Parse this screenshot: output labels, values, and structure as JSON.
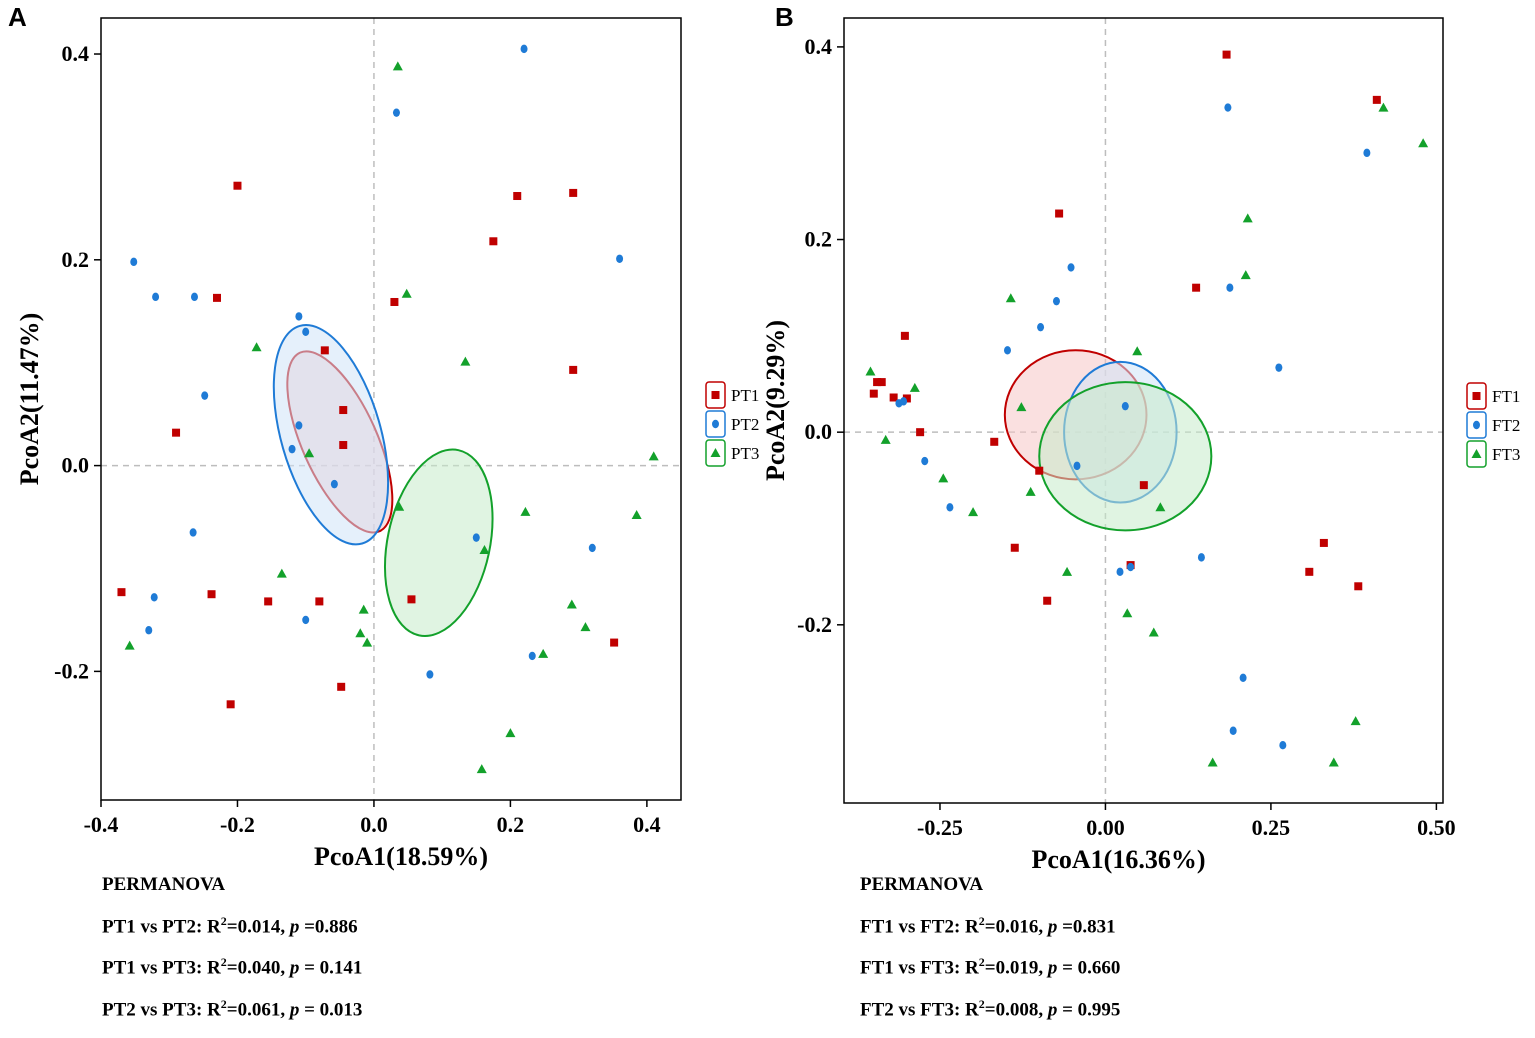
{
  "panels": [
    {
      "letter": "A",
      "chart_data": {
        "type": "scatter",
        "title": "",
        "xlabel": "PcoA1(18.59%)",
        "ylabel": "PcoA2(11.47%)",
        "xlim": [
          -0.4,
          0.45
        ],
        "ylim": [
          -0.325,
          0.435
        ],
        "x_ticks": [
          -0.4,
          -0.2,
          0.0,
          0.2,
          0.4
        ],
        "x_tick_labels": [
          "-0.4",
          "-0.2",
          "0.0",
          "0.2",
          "0.4"
        ],
        "y_ticks": [
          -0.2,
          0.0,
          0.2,
          0.4
        ],
        "y_tick_labels": [
          "-0.2",
          "0.0",
          "0.2",
          "0.4"
        ],
        "reference_lines": {
          "x": 0,
          "y": 0
        },
        "legend_position": "right",
        "series": [
          {
            "name": "PT1",
            "marker": "square",
            "color": "#c00000",
            "fill": "#f5c6c6",
            "ellipse": {
              "cx": -0.05,
              "cy": 0.023,
              "rx": 0.055,
              "ry": 0.095,
              "angle": 24
            },
            "points": [
              [
                -0.2,
                0.272
              ],
              [
                -0.23,
                0.163
              ],
              [
                -0.072,
                0.112
              ],
              [
                -0.045,
                0.054
              ],
              [
                -0.045,
                0.02
              ],
              [
                -0.29,
                0.032
              ],
              [
                0.03,
                0.159
              ],
              [
                0.175,
                0.218
              ],
              [
                0.21,
                0.262
              ],
              [
                0.292,
                0.265
              ],
              [
                0.292,
                0.093
              ],
              [
                -0.37,
                -0.123
              ],
              [
                -0.238,
                -0.125
              ],
              [
                -0.155,
                -0.132
              ],
              [
                -0.08,
                -0.132
              ],
              [
                0.055,
                -0.13
              ],
              [
                0.352,
                -0.172
              ],
              [
                -0.21,
                -0.232
              ],
              [
                -0.048,
                -0.215
              ]
            ]
          },
          {
            "name": "PT2",
            "marker": "circle",
            "color": "#1f7bd6",
            "fill": "#cfe3f7",
            "ellipse": {
              "cx": -0.063,
              "cy": 0.03,
              "rx": 0.073,
              "ry": 0.11,
              "angle": 16
            },
            "points": [
              [
                0.22,
                0.405
              ],
              [
                0.033,
                0.343
              ],
              [
                -0.352,
                0.198
              ],
              [
                -0.32,
                0.164
              ],
              [
                -0.263,
                0.164
              ],
              [
                0.36,
                0.201
              ],
              [
                -0.11,
                0.145
              ],
              [
                -0.1,
                0.13
              ],
              [
                -0.248,
                0.068
              ],
              [
                -0.11,
                0.039
              ],
              [
                -0.12,
                0.016
              ],
              [
                -0.058,
                -0.018
              ],
              [
                -0.265,
                -0.065
              ],
              [
                0.15,
                -0.07
              ],
              [
                0.32,
                -0.08
              ],
              [
                -0.322,
                -0.128
              ],
              [
                -0.33,
                -0.16
              ],
              [
                -0.1,
                -0.15
              ],
              [
                0.232,
                -0.185
              ],
              [
                0.082,
                -0.203
              ]
            ]
          },
          {
            "name": "PT3",
            "marker": "triangle",
            "color": "#13a12b",
            "fill": "#c6ebcb",
            "ellipse": {
              "cx": 0.095,
              "cy": -0.075,
              "rx": 0.075,
              "ry": 0.092,
              "angle": -12
            },
            "points": [
              [
                0.035,
                0.388
              ],
              [
                0.048,
                0.167
              ],
              [
                -0.172,
                0.115
              ],
              [
                0.134,
                0.101
              ],
              [
                0.41,
                0.009
              ],
              [
                -0.095,
                0.012
              ],
              [
                0.037,
                -0.04
              ],
              [
                0.222,
                -0.045
              ],
              [
                0.385,
                -0.048
              ],
              [
                0.162,
                -0.082
              ],
              [
                -0.135,
                -0.105
              ],
              [
                0.29,
                -0.135
              ],
              [
                0.31,
                -0.157
              ],
              [
                -0.015,
                -0.14
              ],
              [
                -0.02,
                -0.163
              ],
              [
                -0.01,
                -0.172
              ],
              [
                0.248,
                -0.183
              ],
              [
                -0.358,
                -0.175
              ],
              [
                0.2,
                -0.26
              ],
              [
                0.158,
                -0.295
              ]
            ]
          }
        ]
      },
      "stats": {
        "heading": "PERMANOVA",
        "lines": [
          {
            "pair": "PT1 vs PT2:",
            "r_label": "R",
            "r_sup": "2",
            "r_value": "=0.014,",
            "p_label": "p",
            "p_value": " =0.886"
          },
          {
            "pair": "PT1 vs PT3:",
            "r_label": "R",
            "r_sup": "2",
            "r_value": "=0.040,",
            "p_label": "p",
            "p_value": " = 0.141"
          },
          {
            "pair": "PT2 vs PT3:",
            "r_label": "R",
            "r_sup": "2",
            "r_value": "=0.061,",
            "p_label": "p",
            "p_value": " = 0.013"
          }
        ]
      }
    },
    {
      "letter": "B",
      "chart_data": {
        "type": "scatter",
        "title": "",
        "xlabel": "PcoA1(16.36%)",
        "ylabel": "PcoA2(9.29%)",
        "xlim": [
          -0.395,
          0.51
        ],
        "ylim": [
          -0.385,
          0.43
        ],
        "x_ticks": [
          -0.25,
          0.0,
          0.25,
          0.5
        ],
        "x_tick_labels": [
          "-0.25",
          "0.00",
          "0.25",
          "0.50"
        ],
        "y_ticks": [
          -0.2,
          0.0,
          0.2,
          0.4
        ],
        "y_tick_labels": [
          "-0.2",
          "0.0",
          "0.2",
          "0.4"
        ],
        "reference_lines": {
          "x": 0,
          "y": 0
        },
        "legend_position": "right",
        "series": [
          {
            "name": "FT1",
            "marker": "square",
            "color": "#c00000",
            "fill": "#f5c6c6",
            "ellipse": {
              "cx": -0.045,
              "cy": 0.018,
              "rx": 0.107,
              "ry": 0.067,
              "angle": 0
            },
            "points": [
              [
                0.183,
                0.392
              ],
              [
                0.41,
                0.345
              ],
              [
                -0.07,
                0.227
              ],
              [
                0.137,
                0.15
              ],
              [
                -0.303,
                0.1
              ],
              [
                -0.345,
                0.052
              ],
              [
                -0.35,
                0.04
              ],
              [
                -0.338,
                0.052
              ],
              [
                -0.32,
                0.036
              ],
              [
                -0.3,
                0.035
              ],
              [
                -0.28,
                0.0
              ],
              [
                -0.168,
                -0.01
              ],
              [
                -0.1,
                -0.04
              ],
              [
                0.058,
                -0.055
              ],
              [
                -0.137,
                -0.12
              ],
              [
                0.33,
                -0.115
              ],
              [
                0.308,
                -0.145
              ],
              [
                0.038,
                -0.138
              ],
              [
                -0.088,
                -0.175
              ],
              [
                0.382,
                -0.16
              ]
            ]
          },
          {
            "name": "FT2",
            "marker": "circle",
            "color": "#1f7bd6",
            "fill": "#cfe3f7",
            "ellipse": {
              "cx": 0.0225,
              "cy": 0.0,
              "rx": 0.085,
              "ry": 0.073,
              "angle": 0
            },
            "points": [
              [
                0.185,
                0.337
              ],
              [
                0.395,
                0.29
              ],
              [
                -0.052,
                0.171
              ],
              [
                0.188,
                0.15
              ],
              [
                -0.074,
                0.136
              ],
              [
                -0.098,
                0.109
              ],
              [
                -0.148,
                0.085
              ],
              [
                0.262,
                0.067
              ],
              [
                -0.312,
                0.03
              ],
              [
                -0.305,
                0.032
              ],
              [
                -0.273,
                -0.03
              ],
              [
                -0.043,
                -0.035
              ],
              [
                -0.235,
                -0.078
              ],
              [
                0.145,
                -0.13
              ],
              [
                0.022,
                -0.145
              ],
              [
                0.038,
                -0.14
              ],
              [
                0.208,
                -0.255
              ],
              [
                0.193,
                -0.31
              ],
              [
                0.268,
                -0.325
              ],
              [
                0.03,
                0.027
              ]
            ]
          },
          {
            "name": "FT3",
            "marker": "triangle",
            "color": "#13a12b",
            "fill": "#c6ebcb",
            "ellipse": {
              "cx": 0.03,
              "cy": -0.025,
              "rx": 0.13,
              "ry": 0.077,
              "angle": 0
            },
            "points": [
              [
                0.42,
                0.337
              ],
              [
                0.48,
                0.3
              ],
              [
                0.215,
                0.222
              ],
              [
                0.212,
                0.163
              ],
              [
                -0.143,
                0.139
              ],
              [
                -0.355,
                0.063
              ],
              [
                -0.288,
                0.046
              ],
              [
                0.048,
                0.084
              ],
              [
                -0.127,
                0.026
              ],
              [
                -0.332,
                -0.008
              ],
              [
                -0.245,
                -0.048
              ],
              [
                -0.113,
                -0.062
              ],
              [
                -0.2,
                -0.083
              ],
              [
                0.083,
                -0.078
              ],
              [
                -0.058,
                -0.145
              ],
              [
                0.033,
                -0.188
              ],
              [
                0.073,
                -0.208
              ],
              [
                0.378,
                -0.3
              ],
              [
                0.162,
                -0.343
              ],
              [
                0.345,
                -0.343
              ]
            ]
          }
        ]
      },
      "stats": {
        "heading": "PERMANOVA",
        "lines": [
          {
            "pair": "FT1 vs FT2:",
            "r_label": "R",
            "r_sup": "2",
            "r_value": "=0.016,",
            "p_label": "p",
            "p_value": " =0.831"
          },
          {
            "pair": "FT1 vs FT3:",
            "r_label": "R",
            "r_sup": "2",
            "r_value": "=0.019,",
            "p_label": "p",
            "p_value": " = 0.660"
          },
          {
            "pair": "FT2 vs FT3:",
            "r_label": "R",
            "r_sup": "2",
            "r_value": "=0.008,",
            "p_label": "p",
            "p_value": " = 0.995"
          }
        ]
      }
    }
  ]
}
